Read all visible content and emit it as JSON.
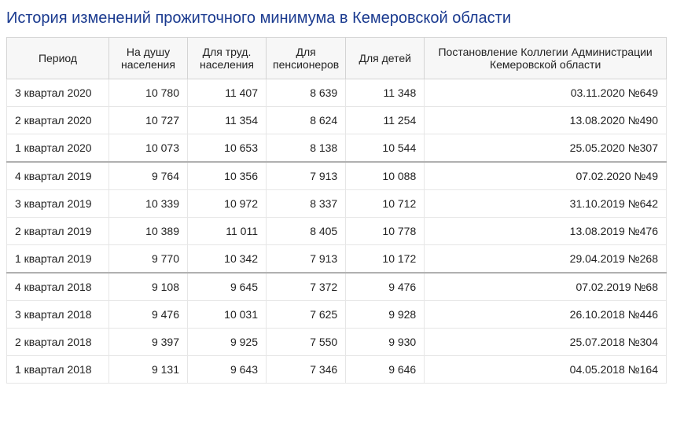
{
  "title": "История изменений прожиточного минимума в Кемеровской области",
  "columns": [
    "Период",
    "На душу населения",
    "Для труд. населения",
    "Для пенсионеров",
    "Для детей",
    "Постановление Коллегии Администрации Кемеровской области"
  ],
  "rows": [
    {
      "period": "3 квартал 2020",
      "per_capita": "10 780",
      "workers": "11 407",
      "pensioners": "8 639",
      "children": "11 348",
      "decree": "03.11.2020 №649",
      "sep": false
    },
    {
      "period": "2 квартал 2020",
      "per_capita": "10 727",
      "workers": "11 354",
      "pensioners": "8 624",
      "children": "11 254",
      "decree": "13.08.2020 №490",
      "sep": false
    },
    {
      "period": "1 квартал 2020",
      "per_capita": "10 073",
      "workers": "10 653",
      "pensioners": "8 138",
      "children": "10 544",
      "decree": "25.05.2020 №307",
      "sep": false
    },
    {
      "period": "4 квартал 2019",
      "per_capita": "9 764",
      "workers": "10 356",
      "pensioners": "7 913",
      "children": "10 088",
      "decree": "07.02.2020 №49",
      "sep": true
    },
    {
      "period": "3 квартал 2019",
      "per_capita": "10 339",
      "workers": "10 972",
      "pensioners": "8 337",
      "children": "10 712",
      "decree": "31.10.2019 №642",
      "sep": false
    },
    {
      "period": "2 квартал 2019",
      "per_capita": "10 389",
      "workers": "11 011",
      "pensioners": "8 405",
      "children": "10 778",
      "decree": "13.08.2019 №476",
      "sep": false
    },
    {
      "period": "1 квартал 2019",
      "per_capita": "9 770",
      "workers": "10 342",
      "pensioners": "7 913",
      "children": "10 172",
      "decree": "29.04.2019 №268",
      "sep": false
    },
    {
      "period": "4 квартал 2018",
      "per_capita": "9 108",
      "workers": "9 645",
      "pensioners": "7 372",
      "children": "9 476",
      "decree": "07.02.2019 №68",
      "sep": true
    },
    {
      "period": "3 квартал 2018",
      "per_capita": "9 476",
      "workers": "10 031",
      "pensioners": "7 625",
      "children": "9 928",
      "decree": "26.10.2018 №446",
      "sep": false
    },
    {
      "period": "2 квартал 2018",
      "per_capita": "9 397",
      "workers": "9 925",
      "pensioners": "7 550",
      "children": "9 930",
      "decree": "25.07.2018 №304",
      "sep": false
    },
    {
      "period": "1 квартал 2018",
      "per_capita": "9 131",
      "workers": "9 643",
      "pensioners": "7 346",
      "children": "9 646",
      "decree": "04.05.2018 №164",
      "sep": false
    }
  ],
  "styles": {
    "title_color": "#1a3a8f",
    "title_fontsize": 20,
    "body_fontsize": 14,
    "text_color": "#222222",
    "header_bg": "#f7f7f7",
    "border_color": "#e6e6e6",
    "header_border_color": "#d4d4d4",
    "year_separator_color": "#b0b0b0",
    "background": "#ffffff",
    "col_widths": {
      "period": 130,
      "value": 100
    },
    "align_first_col": "left",
    "align_other_cols": "right"
  }
}
